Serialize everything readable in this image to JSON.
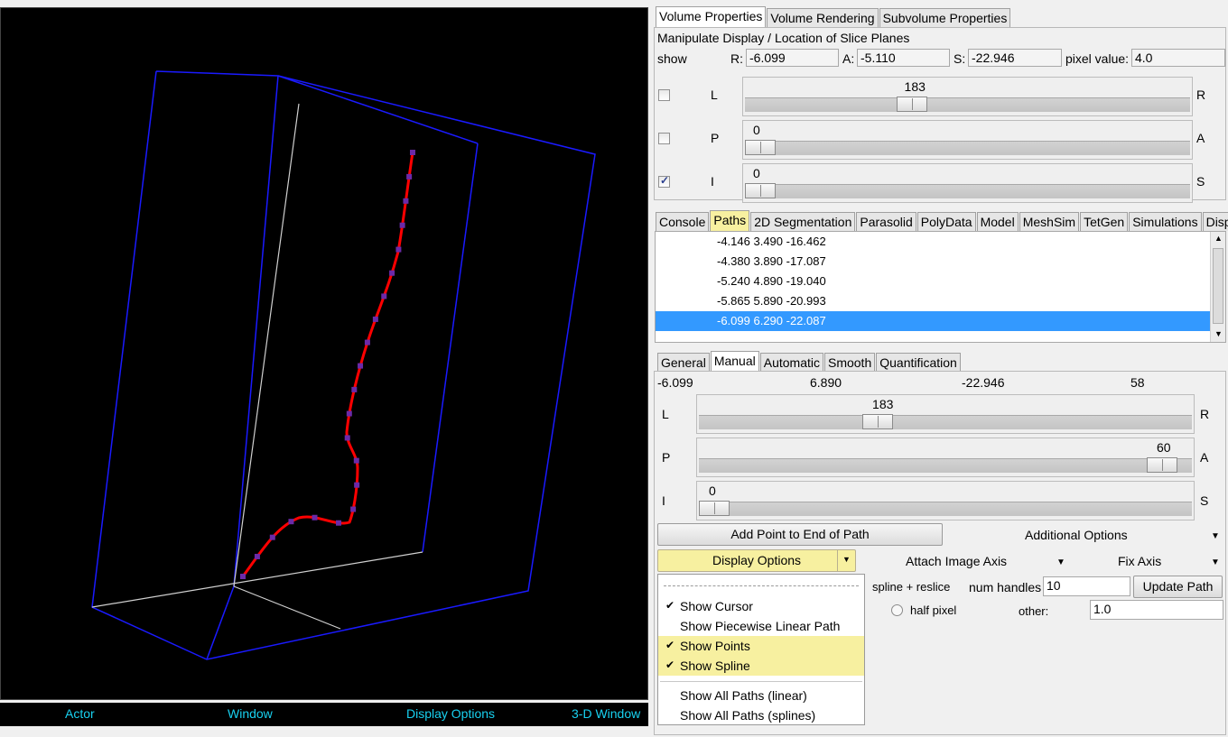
{
  "viewport": {
    "status": [
      "Actor",
      "Window",
      "Display Options",
      "3-D Window"
    ],
    "colors": {
      "bounding_box": "#1a1aff",
      "path": "#ff0000",
      "points": "#6a2aa8",
      "slice_line": "#d0d0d0",
      "status_text": "#18d1f0"
    }
  },
  "top_tabs": [
    "Volume Properties",
    "Volume Rendering",
    "Subvolume Properties"
  ],
  "volume": {
    "heading": "Manipulate Display / Location of Slice Planes",
    "show_label": "show",
    "r_label": "R:",
    "r_value": "-6.099",
    "a_label": "A:",
    "a_value": "-5.110",
    "s_label": "S:",
    "s_value": "-22.946",
    "pixel_label": "pixel value:",
    "pixel_value": "4.0",
    "sliders": [
      {
        "left": "L",
        "right": "R",
        "value": "183",
        "checked": false,
        "fraction": 0.365
      },
      {
        "left": "P",
        "right": "A",
        "value": "0",
        "checked": false,
        "fraction": 0.0
      },
      {
        "left": "I",
        "right": "S",
        "value": "0",
        "checked": true,
        "fraction": 0.0
      }
    ]
  },
  "mid_tabs": [
    "Console",
    "Paths",
    "2D Segmentation",
    "Parasolid",
    "PolyData",
    "Model",
    "MeshSim",
    "TetGen",
    "Simulations",
    "Displays"
  ],
  "points_list": [
    "-4.146 3.490 -16.462",
    "-4.380 3.890 -17.087",
    "-5.240 4.890 -19.040",
    "-5.865 5.890 -20.993",
    "-6.099 6.290 -22.087"
  ],
  "path_tabs": [
    "General",
    "Manual",
    "Automatic",
    "Smooth",
    "Quantification"
  ],
  "manual": {
    "readout": [
      "-6.099",
      "6.890",
      "-22.946",
      "58"
    ],
    "sliders": [
      {
        "left": "L",
        "right": "R",
        "value": "183",
        "fraction": 0.365
      },
      {
        "left": "P",
        "right": "A",
        "value": "60",
        "fraction": 1.0
      },
      {
        "left": "I",
        "right": "S",
        "value": "0",
        "fraction": 0.0
      }
    ],
    "add_point": "Add Point to End of Path",
    "additional_options": "Additional Options",
    "display_options": "Display Options",
    "attach_image_axis": "Attach Image Axis",
    "fix_axis": "Fix Axis",
    "spline_reslice": "spline + reslice",
    "num_handles_label": "num handles",
    "num_handles_value": "10",
    "update_path": "Update Path",
    "half_pixel": "half pixel",
    "other_label": "other:",
    "other_value": "1.0"
  },
  "menu": {
    "items": [
      {
        "label": "Show Cursor",
        "checked": true,
        "highlighted": false
      },
      {
        "label": "Show Piecewise Linear Path",
        "checked": false,
        "highlighted": false
      },
      {
        "label": "Show Points",
        "checked": true,
        "highlighted": true
      },
      {
        "label": "Show Spline",
        "checked": true,
        "highlighted": true
      }
    ],
    "extra": [
      "Show All Paths (linear)",
      "Show All Paths (splines)"
    ]
  }
}
